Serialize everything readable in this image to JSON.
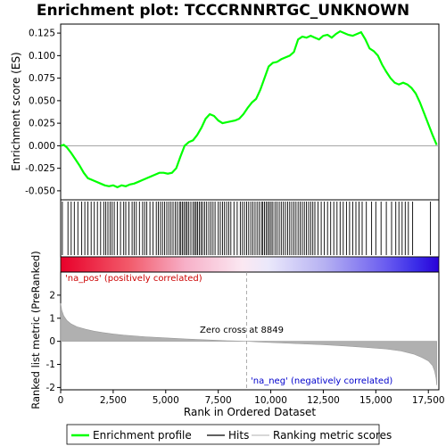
{
  "title": "Enrichment plot: TCCCRNNRTGC_UNKNOWN",
  "chart_data": {
    "type": "line",
    "x_range": [
      0,
      18000
    ],
    "x_ticks": [
      0,
      2500,
      5000,
      7500,
      10000,
      12500,
      15000,
      17500
    ],
    "x_tick_labels": [
      "0",
      "2,500",
      "5,000",
      "7,500",
      "10,000",
      "12,500",
      "15,000",
      "17,500"
    ],
    "xlabel": "Rank in Ordered Dataset",
    "top_panel": {
      "ylabel": "Enrichment score (ES)",
      "ylim": [
        -0.06,
        0.135
      ],
      "y_ticks": [
        -0.05,
        -0.025,
        0.0,
        0.025,
        0.05,
        0.075,
        0.1,
        0.125
      ],
      "y_tick_labels": [
        "-0.050",
        "-0.025",
        "0.000",
        "0.025",
        "0.050",
        "0.075",
        "0.100",
        "0.125"
      ],
      "series_name": "Enrichment profile",
      "color": "#00ff00",
      "points": [
        [
          0,
          0.0
        ],
        [
          150,
          0.001
        ],
        [
          300,
          -0.002
        ],
        [
          500,
          -0.008
        ],
        [
          700,
          -0.015
        ],
        [
          900,
          -0.022
        ],
        [
          1100,
          -0.03
        ],
        [
          1300,
          -0.036
        ],
        [
          1500,
          -0.038
        ],
        [
          1700,
          -0.04
        ],
        [
          1900,
          -0.042
        ],
        [
          2100,
          -0.044
        ],
        [
          2300,
          -0.045
        ],
        [
          2500,
          -0.044
        ],
        [
          2700,
          -0.046
        ],
        [
          2900,
          -0.044
        ],
        [
          3100,
          -0.045
        ],
        [
          3300,
          -0.043
        ],
        [
          3500,
          -0.042
        ],
        [
          3700,
          -0.04
        ],
        [
          3900,
          -0.038
        ],
        [
          4100,
          -0.036
        ],
        [
          4300,
          -0.034
        ],
        [
          4500,
          -0.032
        ],
        [
          4700,
          -0.03
        ],
        [
          4900,
          -0.03
        ],
        [
          5100,
          -0.031
        ],
        [
          5300,
          -0.03
        ],
        [
          5500,
          -0.025
        ],
        [
          5700,
          -0.012
        ],
        [
          5900,
          0.0
        ],
        [
          6100,
          0.004
        ],
        [
          6300,
          0.006
        ],
        [
          6500,
          0.012
        ],
        [
          6700,
          0.02
        ],
        [
          6900,
          0.03
        ],
        [
          7100,
          0.035
        ],
        [
          7300,
          0.033
        ],
        [
          7500,
          0.028
        ],
        [
          7700,
          0.025
        ],
        [
          7900,
          0.026
        ],
        [
          8100,
          0.027
        ],
        [
          8300,
          0.028
        ],
        [
          8500,
          0.03
        ],
        [
          8700,
          0.035
        ],
        [
          8900,
          0.042
        ],
        [
          9100,
          0.048
        ],
        [
          9300,
          0.052
        ],
        [
          9500,
          0.062
        ],
        [
          9700,
          0.075
        ],
        [
          9900,
          0.088
        ],
        [
          10100,
          0.092
        ],
        [
          10300,
          0.093
        ],
        [
          10500,
          0.096
        ],
        [
          10700,
          0.098
        ],
        [
          10900,
          0.1
        ],
        [
          11100,
          0.104
        ],
        [
          11300,
          0.118
        ],
        [
          11500,
          0.121
        ],
        [
          11700,
          0.12
        ],
        [
          11900,
          0.122
        ],
        [
          12100,
          0.12
        ],
        [
          12300,
          0.118
        ],
        [
          12500,
          0.122
        ],
        [
          12700,
          0.123
        ],
        [
          12900,
          0.12
        ],
        [
          13100,
          0.124
        ],
        [
          13300,
          0.127
        ],
        [
          13500,
          0.125
        ],
        [
          13700,
          0.123
        ],
        [
          13900,
          0.122
        ],
        [
          14100,
          0.124
        ],
        [
          14300,
          0.126
        ],
        [
          14500,
          0.118
        ],
        [
          14700,
          0.108
        ],
        [
          14900,
          0.105
        ],
        [
          15100,
          0.1
        ],
        [
          15300,
          0.09
        ],
        [
          15500,
          0.082
        ],
        [
          15700,
          0.075
        ],
        [
          15900,
          0.07
        ],
        [
          16100,
          0.068
        ],
        [
          16300,
          0.07
        ],
        [
          16500,
          0.068
        ],
        [
          16700,
          0.064
        ],
        [
          16900,
          0.058
        ],
        [
          17100,
          0.048
        ],
        [
          17300,
          0.036
        ],
        [
          17500,
          0.024
        ],
        [
          17700,
          0.012
        ],
        [
          17900,
          0.001
        ]
      ]
    },
    "hits": [
      80,
      350,
      500,
      650,
      820,
      1000,
      1150,
      1300,
      1450,
      1600,
      1750,
      1900,
      2050,
      2150,
      2250,
      2350,
      2450,
      2550,
      2700,
      2850,
      3000,
      3100,
      3250,
      3400,
      3500,
      3600,
      3750,
      3900,
      4000,
      4100,
      4250,
      4400,
      4550,
      4650,
      4750,
      4850,
      4950,
      5050,
      5150,
      5250,
      5350,
      5450,
      5550,
      5650,
      5720,
      5800,
      5870,
      5950,
      6020,
      6100,
      6200,
      6300,
      6380,
      6450,
      6520,
      6600,
      6680,
      6760,
      6850,
      6950,
      7050,
      7150,
      7250,
      7350,
      7500,
      7600,
      7700,
      7800,
      7900,
      8000,
      8100,
      8250,
      8400,
      8550,
      8650,
      8750,
      8850,
      8950,
      9050,
      9150,
      9250,
      9350,
      9450,
      9550,
      9620,
      9700,
      9780,
      9860,
      9940,
      10020,
      10100,
      10200,
      10300,
      10400,
      10500,
      10600,
      10700,
      10800,
      10900,
      11000,
      11100,
      11200,
      11300,
      11400,
      11500,
      11600,
      11700,
      11800,
      11900,
      12000,
      12100,
      12250,
      12400,
      12550,
      12700,
      12850,
      13000,
      13150,
      13300,
      13450,
      13600,
      13750,
      13900,
      14050,
      14200,
      14350,
      14550,
      14800,
      15000,
      15250,
      15500,
      15750,
      15950,
      16100,
      16250,
      16400,
      16550,
      16750,
      17600
    ],
    "hits_name": "Hits",
    "bottom_panel": {
      "ylabel": "Ranked list metric (PreRanked)",
      "ylim": [
        -2.1,
        3.0
      ],
      "y_ticks": [
        -2,
        -1,
        0,
        1,
        2
      ],
      "y_tick_labels": [
        "-2",
        "-1",
        "0",
        "1",
        "2"
      ],
      "series_name": "Ranking metric scores",
      "zero_cross": 8849,
      "zero_cross_label": "Zero cross at 8849",
      "pos_label": "'na_pos' (positively correlated)",
      "neg_label": "'na_neg' (negatively correlated)",
      "metric_profile": [
        [
          0,
          1.65
        ],
        [
          50,
          1.35
        ],
        [
          150,
          1.1
        ],
        [
          300,
          0.9
        ],
        [
          500,
          0.75
        ],
        [
          800,
          0.62
        ],
        [
          1200,
          0.52
        ],
        [
          1600,
          0.44
        ],
        [
          2000,
          0.38
        ],
        [
          2500,
          0.32
        ],
        [
          3000,
          0.27
        ],
        [
          4000,
          0.2
        ],
        [
          5000,
          0.15
        ],
        [
          6000,
          0.1
        ],
        [
          7000,
          0.06
        ],
        [
          8000,
          0.02
        ],
        [
          8849,
          0.0
        ],
        [
          9500,
          -0.03
        ],
        [
          10500,
          -0.07
        ],
        [
          11500,
          -0.11
        ],
        [
          12500,
          -0.15
        ],
        [
          13500,
          -0.2
        ],
        [
          14500,
          -0.26
        ],
        [
          15500,
          -0.33
        ],
        [
          16200,
          -0.42
        ],
        [
          16800,
          -0.55
        ],
        [
          17200,
          -0.7
        ],
        [
          17500,
          -0.85
        ],
        [
          17700,
          -1.05
        ],
        [
          17800,
          -1.3
        ],
        [
          17870,
          -1.6
        ],
        [
          17900,
          -1.9
        ]
      ]
    },
    "legend": {
      "entries": [
        "Enrichment profile",
        "Hits",
        "Ranking metric scores"
      ],
      "colors": [
        "#00ff00",
        "#000000",
        "#c0c0c0"
      ]
    }
  }
}
